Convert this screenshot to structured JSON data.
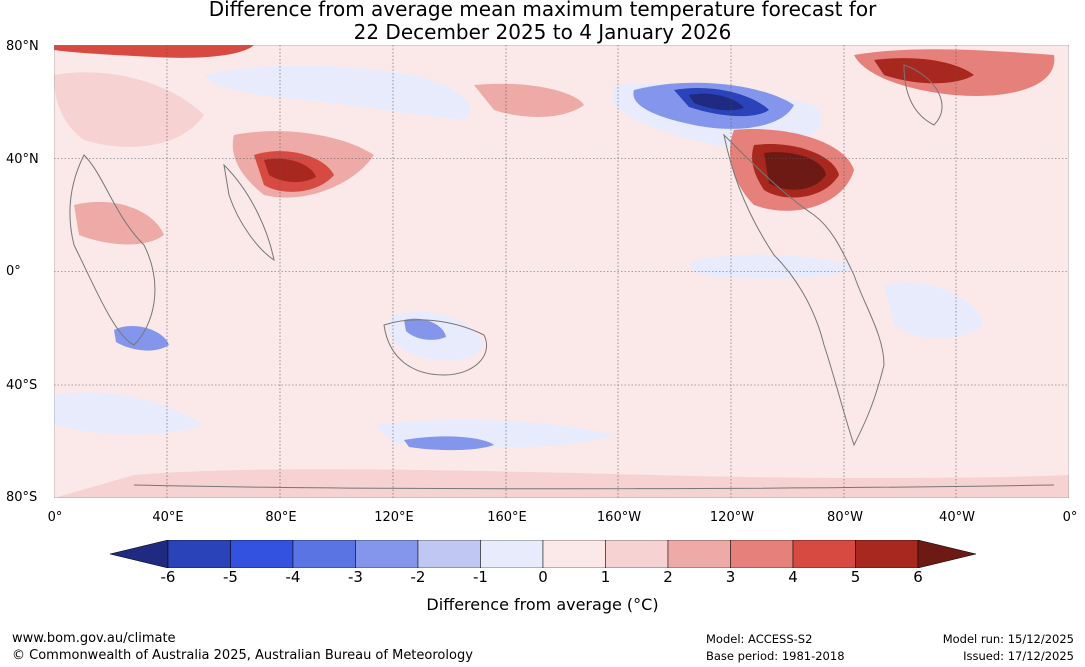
{
  "title": {
    "line1": "Difference from average mean maximum temperature forecast for",
    "line2": "22 December 2025 to 4 January 2026"
  },
  "map": {
    "lat_labels": [
      "80°N",
      "40°N",
      "0°",
      "40°S",
      "80°S"
    ],
    "lon_labels": [
      "0°",
      "40°E",
      "80°E",
      "120°E",
      "160°E",
      "160°W",
      "120°W",
      "80°W",
      "40°W",
      "0°"
    ]
  },
  "colorbar": {
    "ticks": [
      "-6",
      "-5",
      "-4",
      "-3",
      "-2",
      "-1",
      "0",
      "1",
      "2",
      "3",
      "4",
      "5",
      "6"
    ],
    "colors": [
      "#1f2a80",
      "#2a43b8",
      "#3452e0",
      "#5b74e4",
      "#8496ec",
      "#c0c7f3",
      "#e8ebfb",
      "#fbe9e9",
      "#f6d2d2",
      "#eeaaa6",
      "#e5807b",
      "#d64a42",
      "#a8281f",
      "#6e1a14"
    ],
    "label": "Difference from average (°C)"
  },
  "footer": {
    "website": "www.bom.gov.au/climate",
    "copyright": "© Commonwealth of Australia 2025, Australian Bureau of Meteorology",
    "model": "Model: ACCESS-S2",
    "base_period": "Base period: 1981-2018",
    "model_run": "Model run: 15/12/2025",
    "issued": "Issued: 17/12/2025"
  }
}
